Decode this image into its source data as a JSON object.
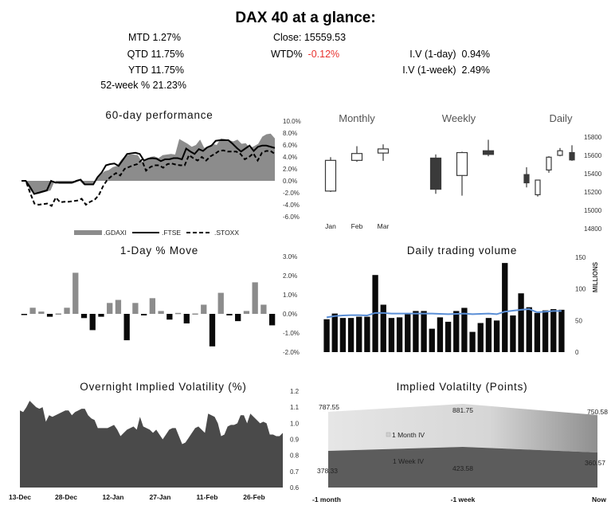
{
  "header": {
    "title": "DAX 40 at a glance:",
    "stats_left": [
      {
        "label": "MTD",
        "value": "1.27%"
      },
      {
        "label": "QTD",
        "value": "11.75%"
      },
      {
        "label": "YTD",
        "value": "11.75%"
      },
      {
        "label": "52-week %",
        "value": "21.23%"
      }
    ],
    "close": {
      "label": "Close:",
      "value": "15559.53"
    },
    "wtd": {
      "label": "WTD%",
      "value": "-0.12%",
      "color": "#e8322f"
    },
    "iv_1day": {
      "label": "I.V (1-day)",
      "value": "0.94%"
    },
    "iv_1week": {
      "label": "I.V (1-week)",
      "value": "2.49%"
    }
  },
  "chart_data": [
    {
      "id": "perf60",
      "type": "area",
      "title": "60-day performance",
      "ylim": [
        -6,
        10
      ],
      "yticks": [
        "10.0%",
        "8.0%",
        "6.0%",
        "4.0%",
        "2.0%",
        "0.0%",
        "-2.0%",
        "-4.0%",
        "-6.0%"
      ],
      "series": [
        {
          "name": ".GDAXI",
          "style": "area",
          "color": "#8c8c8c",
          "values": [
            0,
            0,
            -1.5,
            -2.2,
            -2.2,
            -2.0,
            -1.8,
            -1.6,
            0,
            -0.5,
            -0.5,
            -0.5,
            -0.5,
            -0.3,
            0,
            -0.7,
            -0.7,
            -0.7,
            0.3,
            1.0,
            1.6,
            1.8,
            2.3,
            2.5,
            3.5,
            4.2,
            4.4,
            4.4,
            4.3,
            3.2,
            3.6,
            4.0,
            4.1,
            3.8,
            4.3,
            4.4,
            4.5,
            4.4,
            7.0,
            6.6,
            6.2,
            5.7,
            6.0,
            6.9,
            5.5,
            5.8,
            6.2,
            6.0,
            7.1,
            7.0,
            6.8,
            6.6,
            6.9,
            6.2,
            6.3,
            5.5,
            5.8,
            6.2,
            7.4,
            7.8,
            7.9,
            7.1
          ]
        },
        {
          "name": ".FTSE",
          "style": "solid",
          "color": "#000000",
          "values": [
            0,
            0,
            -1.0,
            -2.2,
            -2.0,
            -1.8,
            -1.6,
            0,
            -0.3,
            -0.3,
            -0.3,
            -0.3,
            -0.3,
            0,
            0.2,
            -0.6,
            -0.6,
            -0.6,
            0.6,
            1.4,
            2.6,
            2.8,
            2.9,
            2.5,
            3.5,
            4.5,
            4.6,
            4.7,
            4.5,
            3.4,
            3.7,
            3.8,
            3.7,
            3.3,
            3.6,
            3.6,
            3.8,
            3.8,
            3.6,
            5.4,
            4.9,
            4.5,
            5.3,
            5.0,
            5.6,
            5.9,
            6.7,
            6.8,
            6.8,
            6.8,
            6.2,
            5.5,
            4.9,
            5.4,
            5.9,
            5.0,
            5.7,
            5.9,
            5.9,
            5.7,
            5.5
          ]
        },
        {
          "name": ".STOXX",
          "style": "dashed",
          "color": "#000000",
          "values": [
            0,
            0,
            -2.0,
            -3.8,
            -4.0,
            -3.9,
            -3.8,
            -4.2,
            -2.8,
            -3.6,
            -3.5,
            -3.5,
            -3.4,
            -3.3,
            -3.0,
            -4.0,
            -3.5,
            -3.2,
            -2.4,
            -0.9,
            0.2,
            0.8,
            1.3,
            0.9,
            2.0,
            2.3,
            2.6,
            2.8,
            3.5,
            1.7,
            2.3,
            2.6,
            2.6,
            2.2,
            2.8,
            2.9,
            2.7,
            2.6,
            2.6,
            4.3,
            3.8,
            3.4,
            4.0,
            3.4,
            4.1,
            4.5,
            5.0,
            5.1,
            4.9,
            4.9,
            4.9,
            4.5,
            3.6,
            4.0,
            4.6,
            3.4,
            4.7,
            5.0,
            5.0,
            4.5
          ]
        }
      ]
    },
    {
      "id": "candles",
      "type": "candlestick",
      "ylim": [
        14800,
        15800
      ],
      "yticks": [
        "15800",
        "15600",
        "15400",
        "15200",
        "15000",
        "14800"
      ],
      "groups": [
        {
          "title": "Monthly",
          "labels": [
            "Jan",
            "Feb",
            "Mar"
          ],
          "candles": [
            {
              "open": 15210,
              "high": 15580,
              "low": 15200,
              "close": 15545
            },
            {
              "open": 15545,
              "high": 15700,
              "low": 15530,
              "close": 15620
            },
            {
              "open": 15625,
              "high": 15720,
              "low": 15540,
              "close": 15670
            }
          ]
        },
        {
          "title": "Weekly",
          "labels": [
            "",
            "",
            ""
          ],
          "candles": [
            {
              "open": 15570,
              "high": 15610,
              "low": 15180,
              "close": 15230
            },
            {
              "open": 15380,
              "high": 15640,
              "low": 15160,
              "close": 15630
            },
            {
              "open": 15650,
              "high": 15770,
              "low": 15590,
              "close": 15610
            }
          ]
        },
        {
          "title": "Daily",
          "labels": [
            "",
            "",
            "",
            "",
            ""
          ],
          "candles": [
            {
              "open": 15390,
              "high": 15470,
              "low": 15250,
              "close": 15300
            },
            {
              "open": 15170,
              "high": 15330,
              "low": 15150,
              "close": 15330
            },
            {
              "open": 15440,
              "high": 15590,
              "low": 15410,
              "close": 15580
            },
            {
              "open": 15600,
              "high": 15680,
              "low": 15590,
              "close": 15650
            },
            {
              "open": 15630,
              "high": 15710,
              "low": 15540,
              "close": 15550
            }
          ]
        }
      ]
    },
    {
      "id": "move1d",
      "type": "bar",
      "title": "1-Day % Move",
      "ylim": [
        -2,
        3
      ],
      "yticks": [
        "3.0%",
        "2.0%",
        "1.0%",
        "0.0%",
        "-1.0%",
        "-2.0%"
      ],
      "positive_color": "#8c8c8c",
      "negative_color": "#0a0a0a",
      "values": [
        -0.05,
        0.32,
        0.12,
        -0.15,
        0.02,
        0.32,
        2.15,
        -0.22,
        -0.85,
        -0.15,
        0.57,
        0.73,
        -1.38,
        0.57,
        -0.08,
        0.82,
        0.15,
        -0.3,
        0.05,
        -0.5,
        0.02,
        0.48,
        -1.7,
        1.1,
        -0.08,
        -0.38,
        0.15,
        1.65,
        0.48,
        -0.6
      ]
    },
    {
      "id": "volume",
      "type": "bar",
      "title": "Daily trading volume",
      "ylabel": "MILLIONS",
      "ylim": [
        0,
        150
      ],
      "yticks": [
        "150",
        "100",
        "50",
        "0"
      ],
      "bar_color": "#0a0a0a",
      "line_color": "#5b8fd6",
      "values": [
        52,
        61,
        54,
        54,
        56,
        56,
        122,
        75,
        54,
        55,
        60,
        65,
        65,
        37,
        55,
        48,
        65,
        70,
        32,
        46,
        54,
        50,
        141,
        58,
        93,
        71,
        62,
        66,
        68,
        67
      ],
      "avg": [
        55,
        57,
        58,
        58.5,
        58.5,
        58,
        62,
        62,
        61,
        61,
        61,
        61,
        61,
        61,
        60.5,
        60,
        60.5,
        61,
        60,
        60.5,
        61,
        60,
        64,
        65.5,
        67,
        68,
        63,
        64,
        65,
        65
      ]
    },
    {
      "id": "oniv",
      "type": "area",
      "title": "Overnight Implied Volatility (%)",
      "ylim": [
        0.6,
        1.2
      ],
      "yticks": [
        "1.2",
        "1.1",
        "1.0",
        "0.9",
        "0.8",
        "0.7",
        "0.6"
      ],
      "xticks": [
        "13-Dec",
        "28-Dec",
        "12-Jan",
        "27-Jan",
        "11-Feb",
        "26-Feb"
      ],
      "color": "#4a4a4a",
      "values": [
        1.08,
        1.07,
        1.1,
        1.14,
        1.12,
        1.1,
        1.09,
        1.1,
        1.01,
        1.05,
        1.04,
        1.05,
        1.06,
        1.07,
        1.08,
        1.08,
        1.05,
        1.07,
        1.08,
        1.09,
        1.09,
        1.05,
        1.03,
        1.02,
        0.97,
        0.97,
        0.97,
        0.97,
        0.98,
        0.99,
        0.96,
        0.92,
        0.94,
        0.96,
        0.97,
        0.98,
        0.96,
        1.04,
        0.98,
        0.97,
        0.96,
        0.94,
        0.96,
        0.93,
        0.9,
        0.93,
        0.96,
        0.97,
        0.97,
        0.92,
        0.87,
        0.88,
        0.91,
        0.94,
        0.97,
        0.98,
        0.96,
        0.94,
        1.06,
        1.05,
        1.04,
        1.0,
        0.92,
        0.93,
        0.98,
        0.99,
        0.99,
        1.0,
        1.05,
        1.05,
        1.0,
        1.06,
        1.04,
        1.02,
        1.0,
        1.01,
        1.0,
        0.93,
        0.93,
        0.92,
        0.92,
        0.94
      ]
    },
    {
      "id": "ivpoints",
      "type": "area",
      "title": "Implied Volatilty (Points)",
      "categories": [
        "-1 month",
        "-1 week",
        "Now"
      ],
      "series": [
        {
          "name": "1 Month IV",
          "values": [
            787.55,
            881.75,
            750.58
          ],
          "labels": [
            "787.55",
            "881.75",
            "750.58"
          ]
        },
        {
          "name": "1 Week IV",
          "values": [
            378.33,
            423.58,
            360.57
          ],
          "labels": [
            "378.33",
            "423.58",
            "360.57"
          ]
        }
      ]
    }
  ]
}
